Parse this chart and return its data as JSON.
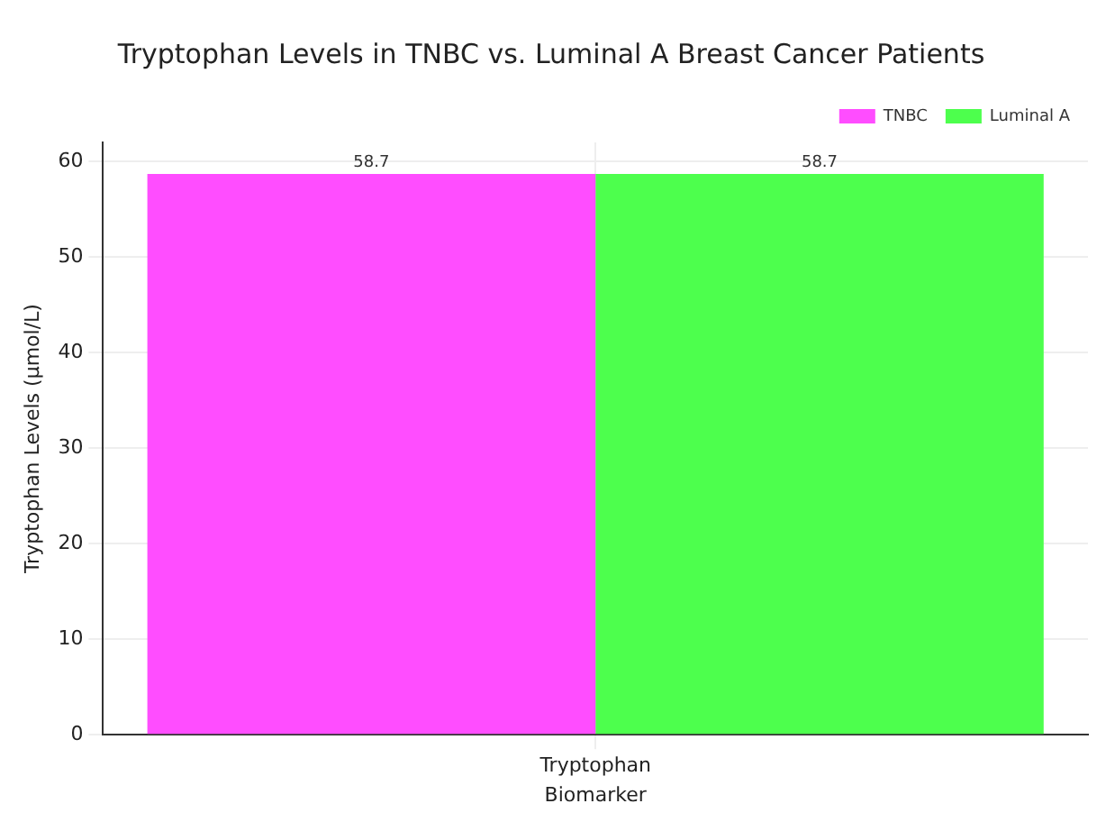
{
  "chart_data": {
    "type": "bar",
    "title": "Tryptophan Levels in TNBC vs. Luminal A Breast Cancer Patients",
    "xlabel": "Biomarker",
    "ylabel": "Tryptophan Levels (µmol/L)",
    "categories": [
      "Tryptophan"
    ],
    "series": [
      {
        "name": "TNBC",
        "color": "#ff4dff",
        "values": [
          58.7
        ]
      },
      {
        "name": "Luminal A",
        "color": "#4dff4d",
        "values": [
          58.7
        ]
      }
    ],
    "ylim": [
      0,
      62
    ],
    "yticks": [
      0,
      10,
      20,
      30,
      40,
      50,
      60
    ],
    "grid": true,
    "legend": "top right",
    "data_labels": true
  }
}
